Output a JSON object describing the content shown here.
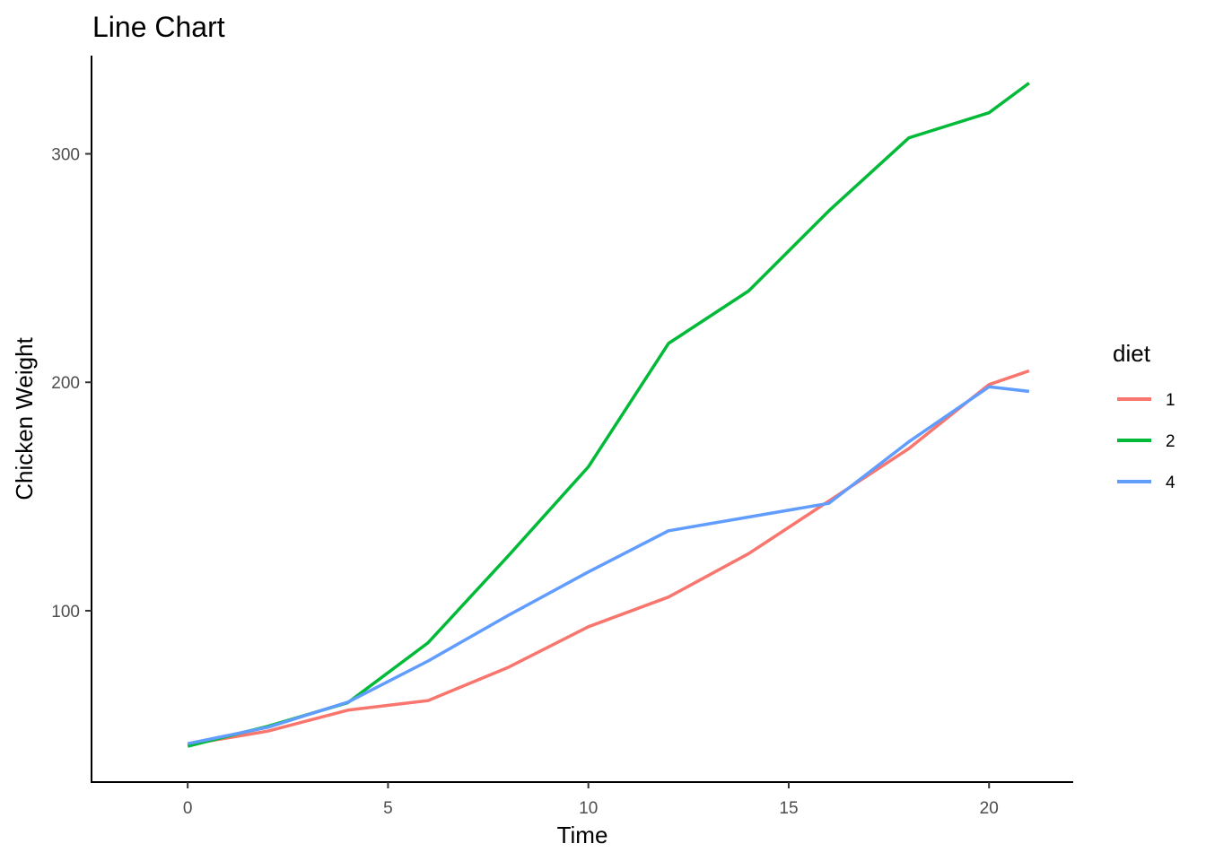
{
  "chart_data": {
    "type": "line",
    "title": "Line Chart",
    "xlabel": "Time",
    "ylabel": "Chicken Weight",
    "xlim": [
      -2.4,
      22.1
    ],
    "ylim": [
      25,
      343
    ],
    "x_ticks": [
      0,
      5,
      10,
      15,
      20
    ],
    "y_ticks": [
      100,
      200,
      300
    ],
    "grid": false,
    "legend": {
      "title": "diet",
      "position": "right"
    },
    "x": [
      0,
      2,
      4,
      6,
      8,
      10,
      12,
      14,
      16,
      18,
      20,
      21
    ],
    "series": [
      {
        "name": "1",
        "color": "#F8766D",
        "values": [
          41.4,
          47.3,
          56.5,
          60.7,
          75.2,
          93,
          106,
          125,
          148,
          171,
          199,
          205
        ]
      },
      {
        "name": "2",
        "color": "#00BA38",
        "values": [
          40.7,
          49.4,
          59.8,
          86,
          124,
          163,
          217,
          240,
          275,
          307,
          318,
          331
        ]
      },
      {
        "name": "4",
        "color": "#619CFF",
        "values": [
          41.8,
          49,
          60,
          78,
          98,
          117,
          135,
          141,
          147,
          174,
          198,
          196
        ]
      }
    ]
  }
}
